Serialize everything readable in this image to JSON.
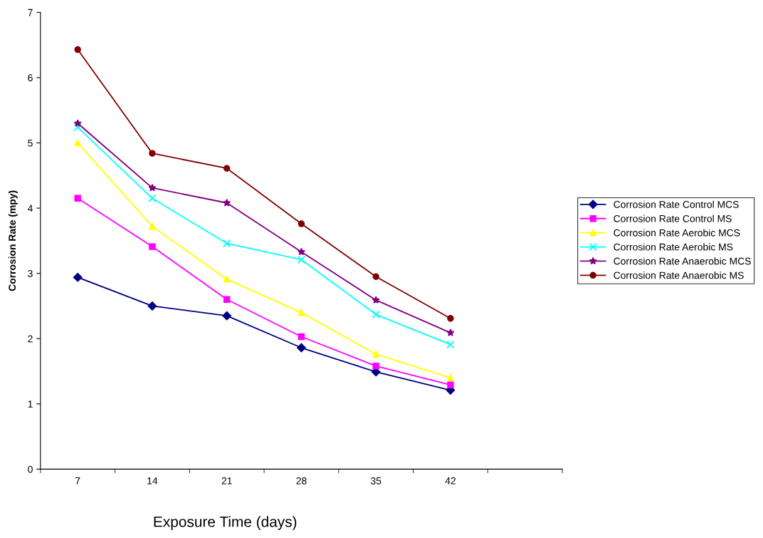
{
  "chart_data": {
    "type": "line",
    "xlabel": "Exposure Time (days)",
    "ylabel": "Corrosion Rate (mpy)",
    "categories": [
      "7",
      "14",
      "21",
      "28",
      "35",
      "42",
      null
    ],
    "ylim": [
      0,
      7
    ],
    "yticks": [
      0,
      1,
      2,
      3,
      4,
      5,
      6,
      7
    ],
    "grid": false,
    "legend": "right",
    "line_style": "solid",
    "series": [
      {
        "name": "Corrosion Rate Control MCS",
        "color": "#000080",
        "marker": "diamond",
        "values": [
          2.94,
          2.5,
          2.35,
          1.86,
          1.49,
          1.21,
          null
        ]
      },
      {
        "name": "Corrosion Rate Control MS",
        "color": "#ff00ff",
        "marker": "square",
        "values": [
          4.15,
          3.41,
          2.6,
          2.03,
          1.58,
          1.29,
          null
        ]
      },
      {
        "name": "Corrosion Rate Aerobic MCS",
        "color": "#ffff00",
        "marker": "triangle",
        "values": [
          5.0,
          3.72,
          2.91,
          2.4,
          1.76,
          1.4,
          null
        ]
      },
      {
        "name": "Corrosion Rate Aerobic MS",
        "color": "#00ffff",
        "marker": "cross",
        "values": [
          5.24,
          4.15,
          3.46,
          3.21,
          2.37,
          1.91,
          null
        ]
      },
      {
        "name": "Corrosion Rate Anaerobic MCS",
        "color": "#800080",
        "marker": "star",
        "values": [
          5.3,
          4.31,
          4.08,
          3.33,
          2.59,
          2.09,
          null
        ]
      },
      {
        "name": "Corrosion Rate Anaerobic MS",
        "color": "#800000",
        "marker": "circle",
        "values": [
          6.43,
          4.84,
          4.61,
          3.76,
          2.95,
          2.31,
          null
        ]
      }
    ]
  }
}
